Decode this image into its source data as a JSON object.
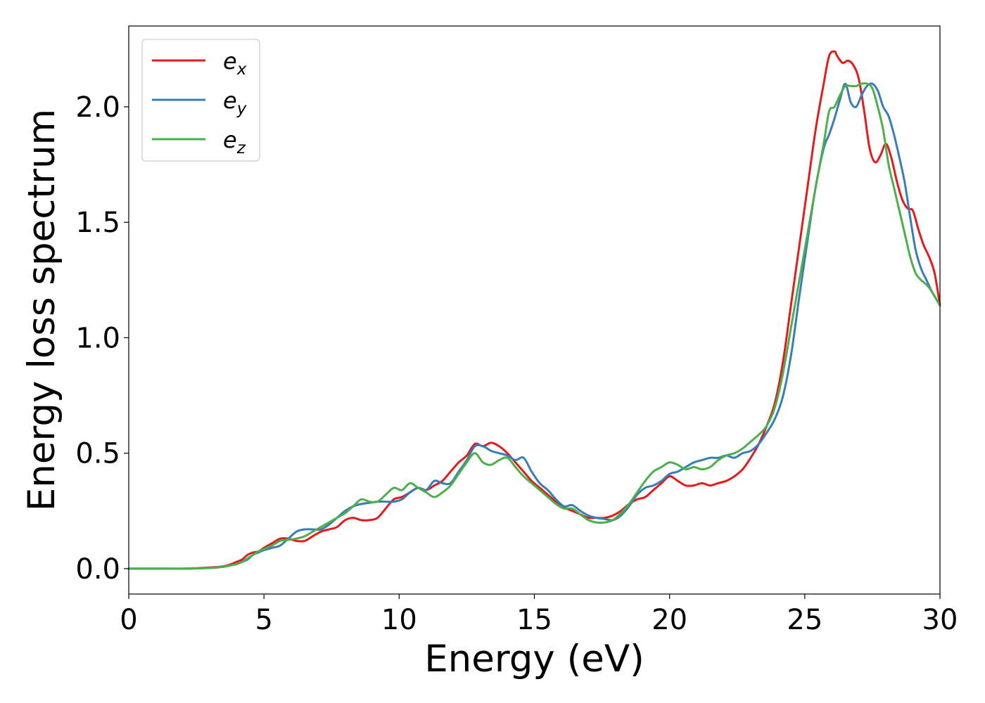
{
  "chart_data": {
    "type": "line",
    "title": "",
    "xlabel": "Energy (eV)",
    "ylabel": "Energy loss spectrum",
    "xlim": [
      0,
      30
    ],
    "ylim": [
      -0.11,
      2.35
    ],
    "xticks": [
      0,
      5,
      10,
      15,
      20,
      25,
      30
    ],
    "xtick_labels": [
      "0",
      "5",
      "10",
      "15",
      "20",
      "25",
      "30"
    ],
    "yticks": [
      0.0,
      0.5,
      1.0,
      1.5,
      2.0
    ],
    "ytick_labels": [
      "0.0",
      "0.5",
      "1.0",
      "1.5",
      "2.0"
    ],
    "grid": false,
    "legend_position": "top-left",
    "series": [
      {
        "name": "e_x",
        "label_base": "e",
        "label_sub": "x",
        "color": "#e41a1c",
        "x": [
          0,
          1,
          2,
          3,
          3.5,
          3.8,
          4.0,
          4.2,
          4.4,
          4.6,
          4.8,
          5.0,
          5.3,
          5.6,
          5.9,
          6.2,
          6.5,
          6.8,
          7.1,
          7.4,
          7.7,
          8.0,
          8.3,
          8.6,
          8.9,
          9.2,
          9.5,
          9.8,
          10.1,
          10.4,
          10.7,
          11.0,
          11.3,
          11.6,
          11.9,
          12.2,
          12.5,
          12.8,
          13.1,
          13.4,
          13.7,
          14.0,
          14.3,
          14.6,
          14.9,
          15.2,
          15.5,
          15.8,
          16.1,
          16.4,
          16.7,
          17.0,
          17.3,
          17.6,
          17.9,
          18.2,
          18.5,
          18.8,
          19.1,
          19.4,
          19.7,
          20.0,
          20.3,
          20.6,
          20.9,
          21.2,
          21.5,
          21.8,
          22.1,
          22.4,
          22.7,
          23.0,
          23.3,
          23.6,
          23.9,
          24.2,
          24.5,
          24.8,
          25.1,
          25.4,
          25.7,
          25.9,
          26.1,
          26.2,
          26.4,
          26.6,
          26.8,
          27.0,
          27.2,
          27.4,
          27.6,
          27.8,
          28.0,
          28.2,
          28.4,
          28.6,
          28.8,
          29.0,
          29.2,
          29.4,
          29.6,
          29.8,
          30.0
        ],
        "values": [
          0.0,
          0.0,
          0.0,
          0.005,
          0.01,
          0.02,
          0.03,
          0.04,
          0.06,
          0.07,
          0.075,
          0.09,
          0.11,
          0.13,
          0.13,
          0.12,
          0.12,
          0.14,
          0.16,
          0.17,
          0.18,
          0.21,
          0.22,
          0.21,
          0.21,
          0.22,
          0.26,
          0.3,
          0.31,
          0.33,
          0.35,
          0.34,
          0.36,
          0.38,
          0.42,
          0.46,
          0.49,
          0.54,
          0.53,
          0.545,
          0.53,
          0.5,
          0.46,
          0.42,
          0.38,
          0.35,
          0.32,
          0.29,
          0.265,
          0.25,
          0.235,
          0.22,
          0.22,
          0.22,
          0.23,
          0.25,
          0.28,
          0.3,
          0.31,
          0.34,
          0.37,
          0.4,
          0.38,
          0.36,
          0.36,
          0.37,
          0.36,
          0.37,
          0.38,
          0.4,
          0.43,
          0.48,
          0.54,
          0.62,
          0.72,
          0.9,
          1.15,
          1.4,
          1.65,
          1.9,
          2.1,
          2.22,
          2.24,
          2.22,
          2.19,
          2.2,
          2.18,
          2.12,
          1.98,
          1.82,
          1.76,
          1.79,
          1.84,
          1.78,
          1.68,
          1.6,
          1.56,
          1.55,
          1.47,
          1.4,
          1.35,
          1.28,
          1.14
        ]
      },
      {
        "name": "e_y",
        "label_base": "e",
        "label_sub": "y",
        "color": "#377eb8",
        "x": [
          0,
          1,
          2,
          3,
          3.5,
          3.8,
          4.0,
          4.2,
          4.4,
          4.6,
          4.8,
          5.0,
          5.3,
          5.6,
          5.9,
          6.2,
          6.5,
          6.8,
          7.1,
          7.4,
          7.7,
          8.0,
          8.3,
          8.6,
          8.9,
          9.2,
          9.5,
          9.8,
          10.1,
          10.4,
          10.7,
          11.0,
          11.3,
          11.6,
          11.9,
          12.2,
          12.5,
          12.8,
          13.1,
          13.4,
          13.7,
          14.0,
          14.3,
          14.6,
          14.9,
          15.2,
          15.5,
          15.8,
          16.1,
          16.4,
          16.7,
          17.0,
          17.3,
          17.6,
          17.9,
          18.2,
          18.5,
          18.8,
          19.1,
          19.4,
          19.7,
          20.0,
          20.3,
          20.6,
          20.9,
          21.2,
          21.5,
          21.8,
          22.1,
          22.4,
          22.7,
          23.0,
          23.3,
          23.6,
          23.9,
          24.2,
          24.5,
          24.8,
          25.1,
          25.4,
          25.7,
          25.9,
          26.1,
          26.3,
          26.5,
          26.7,
          26.9,
          27.1,
          27.3,
          27.5,
          27.7,
          27.9,
          28.1,
          28.3,
          28.5,
          28.7,
          28.9,
          29.1,
          29.3,
          29.5,
          29.7,
          30.0
        ],
        "values": [
          0.0,
          0.0,
          0.0,
          0.003,
          0.008,
          0.015,
          0.02,
          0.03,
          0.04,
          0.06,
          0.07,
          0.08,
          0.09,
          0.1,
          0.13,
          0.16,
          0.17,
          0.17,
          0.17,
          0.19,
          0.22,
          0.25,
          0.27,
          0.28,
          0.285,
          0.29,
          0.29,
          0.29,
          0.3,
          0.33,
          0.35,
          0.34,
          0.38,
          0.37,
          0.37,
          0.42,
          0.47,
          0.53,
          0.53,
          0.51,
          0.5,
          0.49,
          0.47,
          0.48,
          0.42,
          0.37,
          0.34,
          0.3,
          0.27,
          0.275,
          0.25,
          0.23,
          0.22,
          0.215,
          0.21,
          0.23,
          0.27,
          0.32,
          0.35,
          0.36,
          0.38,
          0.41,
          0.42,
          0.44,
          0.46,
          0.47,
          0.48,
          0.48,
          0.49,
          0.48,
          0.5,
          0.51,
          0.54,
          0.59,
          0.65,
          0.75,
          0.93,
          1.18,
          1.42,
          1.65,
          1.82,
          1.88,
          1.95,
          2.03,
          2.1,
          2.02,
          2.0,
          2.05,
          2.09,
          2.1,
          2.07,
          2.0,
          1.96,
          1.88,
          1.78,
          1.67,
          1.52,
          1.38,
          1.3,
          1.25,
          1.2,
          1.14
        ]
      },
      {
        "name": "e_z",
        "label_base": "e",
        "label_sub": "z",
        "color": "#4daf4a",
        "x": [
          0,
          1,
          2,
          3,
          3.5,
          3.8,
          4.0,
          4.2,
          4.4,
          4.6,
          4.8,
          5.0,
          5.3,
          5.6,
          5.9,
          6.2,
          6.5,
          6.8,
          7.1,
          7.4,
          7.7,
          8.0,
          8.3,
          8.6,
          8.9,
          9.2,
          9.5,
          9.8,
          10.1,
          10.4,
          10.7,
          11.0,
          11.3,
          11.6,
          11.9,
          12.2,
          12.5,
          12.8,
          13.1,
          13.4,
          13.7,
          14.0,
          14.3,
          14.6,
          14.9,
          15.2,
          15.5,
          15.8,
          16.1,
          16.4,
          16.7,
          17.0,
          17.3,
          17.6,
          17.9,
          18.2,
          18.5,
          18.8,
          19.1,
          19.4,
          19.7,
          20.0,
          20.3,
          20.6,
          20.9,
          21.2,
          21.5,
          21.8,
          22.1,
          22.4,
          22.7,
          23.0,
          23.3,
          23.6,
          23.9,
          24.2,
          24.5,
          24.8,
          25.1,
          25.4,
          25.7,
          25.9,
          26.1,
          26.3,
          26.5,
          26.7,
          26.9,
          27.1,
          27.3,
          27.5,
          27.7,
          27.9,
          28.1,
          28.3,
          28.5,
          28.7,
          28.9,
          29.1,
          29.3,
          29.5,
          29.7,
          30.0
        ],
        "values": [
          0.0,
          0.0,
          0.0,
          0.003,
          0.008,
          0.015,
          0.02,
          0.03,
          0.045,
          0.06,
          0.075,
          0.085,
          0.1,
          0.12,
          0.125,
          0.13,
          0.14,
          0.16,
          0.18,
          0.2,
          0.22,
          0.24,
          0.27,
          0.3,
          0.29,
          0.29,
          0.32,
          0.35,
          0.34,
          0.37,
          0.35,
          0.33,
          0.31,
          0.33,
          0.36,
          0.41,
          0.46,
          0.5,
          0.46,
          0.45,
          0.47,
          0.48,
          0.44,
          0.4,
          0.37,
          0.34,
          0.31,
          0.28,
          0.26,
          0.26,
          0.235,
          0.21,
          0.2,
          0.2,
          0.21,
          0.24,
          0.28,
          0.33,
          0.38,
          0.42,
          0.44,
          0.46,
          0.45,
          0.43,
          0.44,
          0.43,
          0.44,
          0.47,
          0.49,
          0.5,
          0.52,
          0.55,
          0.58,
          0.62,
          0.7,
          0.85,
          1.05,
          1.25,
          1.45,
          1.65,
          1.84,
          1.98,
          2.0,
          2.05,
          2.09,
          2.09,
          2.09,
          2.1,
          2.1,
          2.08,
          2.0,
          1.9,
          1.75,
          1.65,
          1.55,
          1.45,
          1.35,
          1.28,
          1.25,
          1.23,
          1.2,
          1.14
        ]
      }
    ]
  }
}
